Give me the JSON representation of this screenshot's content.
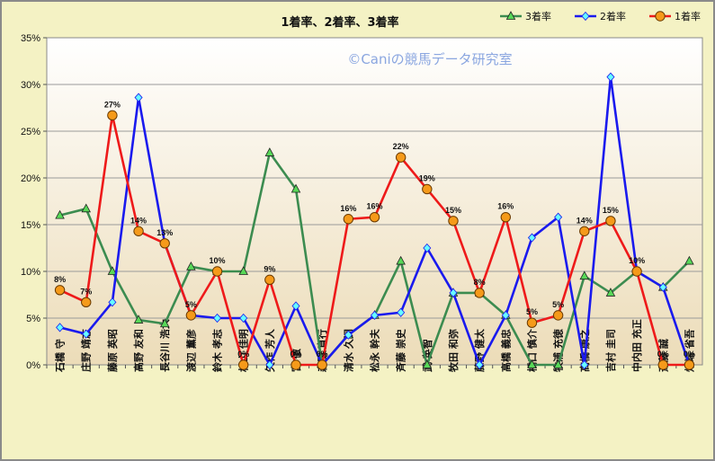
{
  "chart_data": {
    "type": "line",
    "title": "1着率、2着率、3着率",
    "watermark": "©Caniの競馬データ研究室",
    "ylim": [
      0,
      35
    ],
    "yticks": [
      "0%",
      "5%",
      "10%",
      "15%",
      "20%",
      "25%",
      "30%",
      "35%"
    ],
    "categories": [
      "石橋 守",
      "庄野 靖志",
      "藤原 英昭",
      "高野 友和",
      "長谷川 浩大",
      "渡辺 薫彦",
      "鈴木 孝志",
      "杉山 佳明",
      "矢作 芳人",
      "宮 徹",
      "森田 直行",
      "清水 久詞",
      "松永 幹夫",
      "斉藤 崇史",
      "武 英智",
      "牧田 和弥",
      "藤野 健太",
      "高橋 義忠",
      "橋口 慎介",
      "牧浦 充徳",
      "高橋 康之",
      "吉村 圭司",
      "中内田 充正",
      "斎藤 誠",
      "畑端 省吾"
    ],
    "legend_position": "top-right",
    "series": [
      {
        "name": "3着率",
        "color": "#3c8c50",
        "marker": "triangle",
        "values": [
          16.0,
          16.7,
          10.0,
          4.8,
          4.4,
          10.5,
          10.0,
          10.0,
          22.7,
          18.8,
          0,
          3.2,
          5.3,
          11.1,
          0,
          7.7,
          7.7,
          5.3,
          0,
          0,
          9.5,
          7.7,
          10.0,
          8.3,
          11.1
        ]
      },
      {
        "name": "2着率",
        "color": "#1a1aee",
        "marker": "diamond",
        "values": [
          4.0,
          3.3,
          6.7,
          28.6,
          13.0,
          5.3,
          5.0,
          5.0,
          0,
          6.3,
          0,
          3.2,
          5.3,
          5.6,
          12.5,
          7.7,
          0,
          5.3,
          13.6,
          15.8,
          0,
          30.8,
          10.0,
          8.3,
          0
        ]
      },
      {
        "name": "1着率",
        "color": "#ee1a1a",
        "marker": "circle",
        "values": [
          8.0,
          6.7,
          26.7,
          14.3,
          13.0,
          5.3,
          10.0,
          0,
          9.1,
          0,
          0,
          15.6,
          15.8,
          22.2,
          18.8,
          15.4,
          7.7,
          15.8,
          4.5,
          5.3,
          14.3,
          15.4,
          10.0,
          0,
          0
        ],
        "labels": [
          "8%",
          "7%",
          "27%",
          "14%",
          "13%",
          "5%",
          "10%",
          "0%",
          "9%",
          "0%",
          "0%",
          "16%",
          "16%",
          "22%",
          "19%",
          "15%",
          "8%",
          "16%",
          "5%",
          "5%",
          "14%",
          "15%",
          "10%",
          "0%",
          "0%"
        ]
      }
    ]
  }
}
